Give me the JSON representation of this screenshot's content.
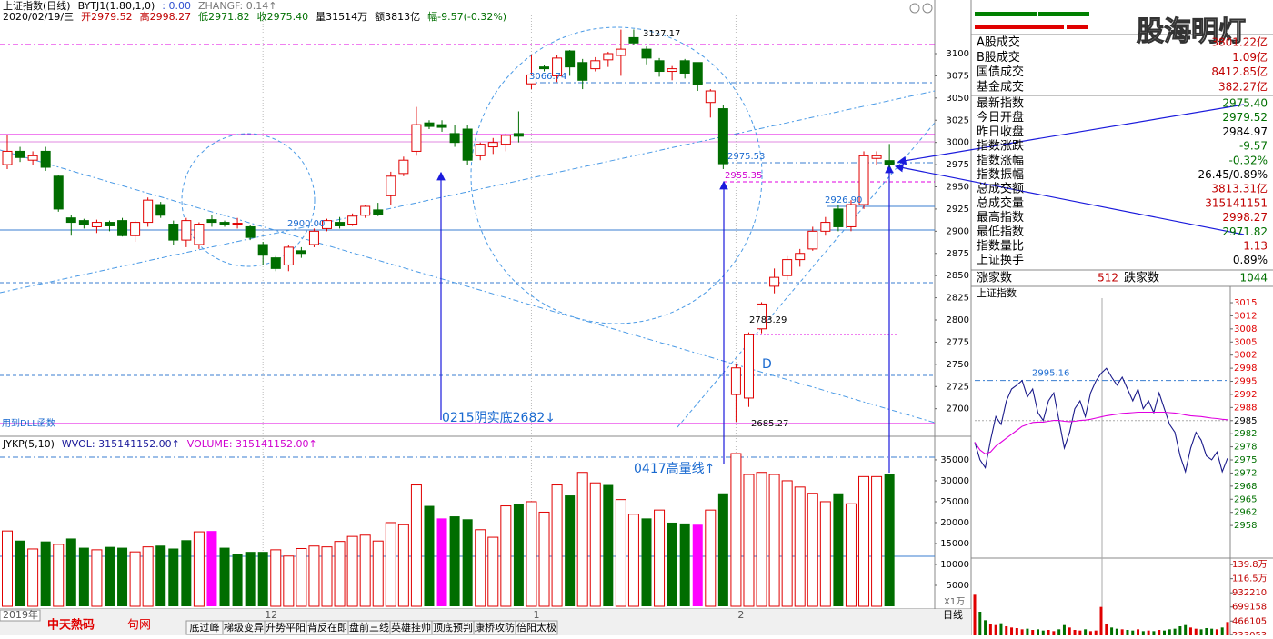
{
  "header": {
    "line1": [
      {
        "text": "上证指数(日线)",
        "color": "#000000"
      },
      {
        "text": "BYTJ1(1.80,1,0)",
        "color": "#000000"
      },
      {
        "text": ": 0.00",
        "color": "#3050d0"
      },
      {
        "text": "ZHANGF: 0.14↑",
        "color": "#777777"
      }
    ],
    "line2": [
      {
        "text": "2020/02/19/三",
        "color": "#000000"
      },
      {
        "text": "开2979.52",
        "color": "#c00000"
      },
      {
        "text": "高2998.27",
        "color": "#c00000"
      },
      {
        "text": "低2971.82",
        "color": "#007000"
      },
      {
        "text": "收2975.40",
        "color": "#007000"
      },
      {
        "text": "量31514万",
        "color": "#000000"
      },
      {
        "text": "额3813亿",
        "color": "#000000"
      },
      {
        "text": "幅-9.57(-0.32%)",
        "color": "#007000"
      }
    ],
    "volume_line": [
      {
        "text": "JYKP(5,10)",
        "color": "#000000"
      },
      {
        "text": "WVOL: 315141152.00↑",
        "color": "#1a1a9a"
      },
      {
        "text": "VOLUME: 315141152.00↑",
        "color": "#d000d0"
      }
    ]
  },
  "chart_data": [
    {
      "type": "candlestick",
      "axis_start_label": "2019年",
      "categories": [
        null,
        null,
        null,
        null,
        null,
        null,
        null,
        null,
        null,
        null,
        null,
        null,
        null,
        null,
        null,
        null,
        null,
        null,
        null,
        null,
        "12",
        null,
        null,
        null,
        null,
        null,
        null,
        null,
        null,
        null,
        null,
        null,
        null,
        null,
        null,
        null,
        null,
        null,
        null,
        null,
        null,
        "1",
        null,
        null,
        null,
        null,
        null,
        null,
        null,
        null,
        null,
        null,
        null,
        null,
        null,
        null,
        null,
        "2",
        null,
        null,
        null,
        null,
        null,
        null,
        null,
        null,
        null,
        null,
        null,
        null
      ],
      "open": [
        2975,
        2990,
        2980,
        2990,
        2962,
        2915,
        2912,
        2905,
        2910,
        2912,
        2895,
        2910,
        2930,
        2908,
        2890,
        2885,
        2913,
        2910,
        2908,
        2905,
        2885,
        2870,
        2862,
        2878,
        2885,
        2903,
        2910,
        2908,
        2918,
        2924,
        2940,
        2965,
        2990,
        3022,
        3020,
        3010,
        3015,
        2985,
        2995,
        2998,
        3010,
        3066,
        3085,
        3075,
        3103,
        3090,
        3083,
        3093,
        3098,
        3118,
        3105,
        3092,
        3080,
        3092,
        3090,
        3045,
        3038,
        2716,
        2712,
        2790,
        2838,
        2850,
        2868,
        2880,
        2900,
        2925,
        2905,
        2930,
        2982,
        2979.52
      ],
      "high": [
        3008,
        2995,
        2990,
        2995,
        2963,
        2918,
        2914,
        2913,
        2912,
        2915,
        2912,
        2938,
        2933,
        2912,
        2915,
        2910,
        2918,
        2912,
        2915,
        2907,
        2888,
        2872,
        2885,
        2882,
        2903,
        2914,
        2916,
        2920,
        2930,
        2932,
        2967,
        2984,
        3040,
        3025,
        3025,
        3020,
        3020,
        3000,
        3005,
        3010,
        3035,
        3098,
        3087,
        3098,
        3104,
        3094,
        3096,
        3102,
        3127,
        3127.17,
        3108,
        3095,
        3086,
        3094,
        3090,
        3060,
        3042,
        2751,
        2786,
        2820,
        2858,
        2872,
        2880,
        2905,
        2916,
        2930,
        2935,
        2990,
        2990,
        2998.27
      ],
      "low": [
        2970,
        2978,
        2975,
        2968,
        2922,
        2895,
        2903,
        2898,
        2900,
        2894,
        2888,
        2905,
        2915,
        2885,
        2882,
        2880,
        2905,
        2905,
        2903,
        2890,
        2862,
        2855,
        2855,
        2870,
        2882,
        2900,
        2903,
        2906,
        2915,
        2917,
        2930,
        2962,
        2985,
        3015,
        3012,
        2995,
        2975,
        2980,
        2987,
        2990,
        3000,
        3060,
        3080,
        3068,
        3075,
        3060,
        3080,
        3085,
        3075,
        3110,
        3088,
        3074,
        3070,
        3072,
        3058,
        3028,
        2970,
        2685.27,
        2702,
        2785,
        2830,
        2845,
        2860,
        2878,
        2895,
        2900,
        2900,
        2925,
        2975,
        2971.82
      ],
      "close": [
        2990,
        2983,
        2985,
        2972,
        2925,
        2910,
        2907,
        2910,
        2906,
        2895,
        2910,
        2935,
        2918,
        2890,
        2912,
        2908,
        2910,
        2908,
        2909,
        2893,
        2873,
        2858,
        2882,
        2875,
        2900,
        2912,
        2906,
        2917,
        2928,
        2919,
        2962,
        2980,
        3020,
        3018,
        3017,
        3000,
        2980,
        2998,
        3000,
        3008,
        3007,
        3076,
        3083,
        3095,
        3085,
        3070,
        3092,
        3100,
        3105,
        3112,
        3095,
        3080,
        3083,
        3078,
        3065,
        3058,
        2976,
        2746,
        2783.29,
        2818,
        2848,
        2868,
        2875,
        2900,
        2910,
        2905,
        2930,
        2985,
        2984.97,
        2975.4
      ],
      "up_color": "#e00000",
      "down_color": "#006d00",
      "ylim": [
        2671,
        3143
      ],
      "yticks": [
        2700,
        2725,
        2750,
        2775,
        2800,
        2825,
        2850,
        2875,
        2900,
        2925,
        2950,
        2975,
        3000,
        3025,
        3050,
        3075,
        3100
      ],
      "annotations": [
        {
          "text": "3127.17",
          "color": "#000000"
        },
        {
          "text": "3066.74",
          "color": "#1a6ad0"
        },
        {
          "text": "2900.00",
          "color": "#1a6ad0"
        },
        {
          "text": "2975.53",
          "color": "#1a6ad0"
        },
        {
          "text": "2955.35",
          "color": "#d000d0"
        },
        {
          "text": "2926.90",
          "color": "#1a6ad0"
        },
        {
          "text": "2783.29",
          "color": "#000000"
        },
        {
          "text": "2685.27",
          "color": "#000000"
        },
        {
          "text": "D",
          "color": "#1a6ad0"
        },
        {
          "text": "0215阴实底2682↓",
          "color": "#1a6ad0"
        },
        {
          "text": "0417高量线↑",
          "color": "#1a6ad0"
        },
        {
          "text": "用到DLL函数",
          "color": "#1a6ad0"
        }
      ]
    },
    {
      "type": "bar",
      "values": [
        18000,
        15700,
        13700,
        15500,
        14800,
        16200,
        14000,
        13500,
        14200,
        14000,
        13000,
        14200,
        14500,
        13800,
        15800,
        17800,
        18000,
        14000,
        12500,
        13000,
        13000,
        13500,
        12000,
        13800,
        14400,
        14200,
        15500,
        16700,
        17000,
        15600,
        20000,
        19500,
        29000,
        24000,
        21000,
        21500,
        20800,
        18300,
        16500,
        24000,
        24500,
        25000,
        22500,
        29000,
        26500,
        32000,
        29500,
        29000,
        25500,
        22000,
        21000,
        23000,
        20000,
        19800,
        19500,
        23000,
        27000,
        36500,
        31500,
        32000,
        31500,
        30000,
        28500,
        27000,
        25000,
        27000,
        24500,
        31000,
        31000,
        31514
      ],
      "colors": [
        "#e00000",
        "#006d00",
        "#e00000",
        "#006d00",
        "#e00000",
        "#006d00",
        "#006d00",
        "#e00000",
        "#006d00",
        "#006d00",
        "#e00000",
        "#e00000",
        "#006d00",
        "#006d00",
        "#006d00",
        "#e00000",
        "#ff00ff",
        "#006d00",
        "#006d00",
        "#006d00",
        "#006d00",
        "#e00000",
        "#e00000",
        "#e00000",
        "#e00000",
        "#e00000",
        "#e00000",
        "#e00000",
        "#e00000",
        "#e00000",
        "#e00000",
        "#e00000",
        "#e00000",
        "#006d00",
        "#ff00ff",
        "#006d00",
        "#006d00",
        "#e00000",
        "#e00000",
        "#e00000",
        "#006d00",
        "#e00000",
        "#e00000",
        "#e00000",
        "#006d00",
        "#e00000",
        "#e00000",
        "#006d00",
        "#e00000",
        "#e00000",
        "#006d00",
        "#e00000",
        "#006d00",
        "#006d00",
        "#ff00ff",
        "#e00000",
        "#006d00",
        "#e00000",
        "#e00000",
        "#e00000",
        "#e00000",
        "#e00000",
        "#e00000",
        "#e00000",
        "#e00000",
        "#006d00",
        "#e00000",
        "#e00000",
        "#e00000",
        "#006d00"
      ],
      "up_color": "#e00000",
      "ylim": [
        0,
        40200
      ],
      "yticks": [
        5000,
        10000,
        15000,
        20000,
        25000,
        30000,
        35000
      ],
      "unit_label": "X1万"
    },
    {
      "type": "line",
      "title": "上证指数",
      "series": [
        {
          "color": "#1a1a8a",
          "values": [
            2979.5,
            2975,
            2973,
            2980,
            2986,
            2984,
            2990,
            2993,
            2994,
            2995.16,
            2991,
            2993,
            2987,
            2985,
            2990,
            2992,
            2985,
            2978,
            2982,
            2988,
            2990,
            2986,
            2992,
            2995,
            2997,
            2998.27,
            2996,
            2994,
            2996,
            2993,
            2990,
            2993,
            2988,
            2990,
            2987,
            2992,
            2988,
            2984,
            2982,
            2976,
            2972,
            2978,
            2982,
            2980,
            2976,
            2975,
            2977,
            2972,
            2975.4
          ]
        },
        {
          "color": "#e000e0",
          "values": [
            2979.5,
            2977.5,
            2976.5,
            2977,
            2978.5,
            2979.5,
            2980.5,
            2981.5,
            2982.5,
            2983.5,
            2984,
            2984.5,
            2984.6,
            2984.6,
            2984.8,
            2985,
            2985,
            2984.8,
            2984.7,
            2984.8,
            2985,
            2985.1,
            2985.3,
            2985.6,
            2985.9,
            2986.2,
            2986.4,
            2986.6,
            2986.8,
            2986.9,
            2987,
            2987.1,
            2987.1,
            2987.1,
            2987.1,
            2987.1,
            2987.1,
            2987,
            2986.9,
            2986.7,
            2986.4,
            2986.2,
            2986.1,
            2986,
            2985.8,
            2985.6,
            2985.5,
            2985.3,
            2985.2
          ]
        }
      ],
      "reference_line": 2984.97,
      "up_color": "#e00000",
      "down_color": "#007000",
      "ylim": [
        2950.5,
        3016.1
      ],
      "yticks": [
        {
          "value": 3014.94,
          "label": "3015"
        },
        {
          "value": 3011.61,
          "label": "3012"
        },
        {
          "value": 3008.28,
          "label": "3008"
        },
        {
          "value": 3004.95,
          "label": "3005"
        },
        {
          "value": 3001.62,
          "label": "3002"
        },
        {
          "value": 2998.29,
          "label": "2998"
        },
        {
          "value": 2994.96,
          "label": "2995"
        },
        {
          "value": 2991.63,
          "label": "2992"
        },
        {
          "value": 2988.3,
          "label": "2988"
        },
        {
          "value": 2984.97,
          "label": "2985"
        },
        {
          "value": 2981.64,
          "label": "2982"
        },
        {
          "value": 2978.31,
          "label": "2978"
        },
        {
          "value": 2974.98,
          "label": "2975"
        },
        {
          "value": 2971.65,
          "label": "2972"
        },
        {
          "value": 2968.32,
          "label": "2968"
        },
        {
          "value": 2964.99,
          "label": "2965"
        },
        {
          "value": 2961.66,
          "label": "2962"
        },
        {
          "value": 2958.33,
          "label": "2958"
        }
      ],
      "annotations": [
        {
          "value": 2995.16
        }
      ]
    },
    {
      "type": "bar",
      "values": [
        900000,
        620000,
        480000,
        420000,
        400000,
        430000,
        380000,
        360000,
        350000,
        330000,
        340000,
        320000,
        330000,
        310000,
        320000,
        300000,
        330000,
        400000,
        360000,
        320000,
        310000,
        330000,
        300000,
        310000,
        700000,
        420000,
        360000,
        340000,
        330000,
        320000,
        310000,
        330000,
        300000,
        310000,
        300000,
        320000,
        310000,
        330000,
        340000,
        380000,
        400000,
        360000,
        340000,
        330000,
        350000,
        340000,
        330000,
        360000,
        450000
      ],
      "up_color": "#e00000",
      "down_color": "#007000",
      "tick_color": "#c00000",
      "ylim": [
        230000,
        1460000
      ],
      "yticks": [
        233053,
        466105,
        699158,
        932210,
        {
          "value": 1165263,
          "label": "116.5万"
        },
        {
          "value": 1398316,
          "label": "139.8万"
        }
      ]
    }
  ],
  "market_panel": {
    "rows": [
      {
        "label": "A股成交",
        "value": "3801.22亿",
        "color": "#c00000"
      },
      {
        "label": "B股成交",
        "value": "1.09亿",
        "color": "#c00000"
      },
      {
        "label": "国债成交",
        "value": "8412.85亿",
        "color": "#c00000"
      },
      {
        "label": "基金成交",
        "value": "382.27亿",
        "color": "#c00000"
      },
      {
        "label": "最新指数",
        "value": "2975.40",
        "color": "#007000"
      },
      {
        "label": "今日开盘",
        "value": "2979.52",
        "color": "#007000"
      },
      {
        "label": "昨日收盘",
        "value": "2984.97",
        "color": "#000000"
      },
      {
        "label": "指数涨跌",
        "value": "-9.57",
        "color": "#007000"
      },
      {
        "label": "指数涨幅",
        "value": "-0.32%",
        "color": "#007000"
      },
      {
        "label": "指数振幅",
        "value": "26.45/0.89%",
        "color": "#000000"
      },
      {
        "label": "总成交额",
        "value": "3813.31亿",
        "color": "#c00000"
      },
      {
        "label": "总成交量",
        "value": "315141151",
        "color": "#c00000"
      },
      {
        "label": "最高指数",
        "value": "2998.27",
        "color": "#c00000"
      },
      {
        "label": "最低指数",
        "value": "2971.82",
        "color": "#007000"
      },
      {
        "label": "指数量比",
        "value": "1.13",
        "color": "#c00000"
      },
      {
        "label": "上证换手",
        "value": "0.89%",
        "color": "#000000"
      }
    ],
    "breadth": {
      "up_label": "涨家数",
      "up": "512",
      "down_label": "跌家数",
      "down": "1044"
    }
  },
  "watermark": "股海明灯",
  "toolbar": {
    "logo": "中天熱码",
    "logo_tail": "句网",
    "period": "日线",
    "tabs": [
      "底过峰",
      "梯级变异",
      "升势平阳",
      "背反在即",
      "盘前三线",
      "英雄挂帅",
      "顶底预判",
      "康桥攻防",
      "倍阳太极"
    ]
  }
}
